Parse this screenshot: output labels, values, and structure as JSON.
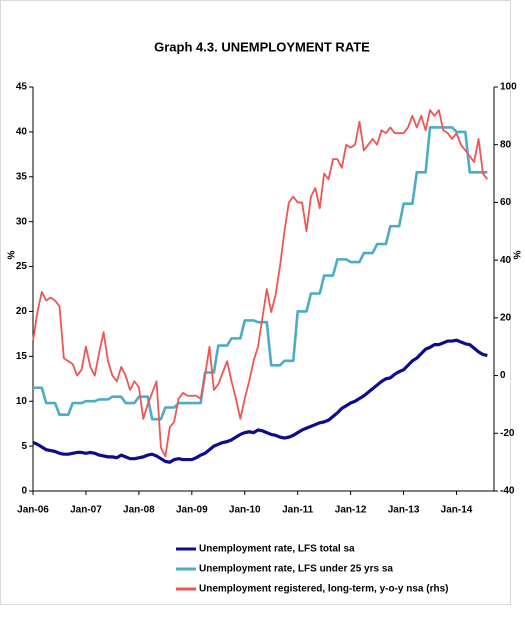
{
  "chart_data": {
    "type": "line",
    "title": "Graph 4.3. UNEMPLOYMENT RATE",
    "ylabel": "%",
    "y2label": "%",
    "categories": [
      "Jan-06",
      null,
      null,
      null,
      null,
      null,
      null,
      null,
      null,
      null,
      null,
      null,
      "Jan-07",
      null,
      null,
      null,
      null,
      null,
      null,
      null,
      null,
      null,
      null,
      null,
      "Jan-08",
      null,
      null,
      null,
      null,
      null,
      null,
      null,
      null,
      null,
      null,
      null,
      "Jan-09",
      null,
      null,
      null,
      null,
      null,
      null,
      null,
      null,
      null,
      null,
      null,
      "Jan-10",
      null,
      null,
      null,
      null,
      null,
      null,
      null,
      null,
      null,
      null,
      null,
      "Jan-11",
      null,
      null,
      null,
      null,
      null,
      null,
      null,
      null,
      null,
      null,
      null,
      "Jan-12",
      null,
      null,
      null,
      null,
      null,
      null,
      null,
      null,
      null,
      null,
      null,
      "Jan-13",
      null,
      null,
      null,
      null,
      null,
      null,
      null,
      null,
      null,
      null,
      null,
      "Jan-14",
      null,
      null,
      null,
      null,
      null,
      null,
      null
    ],
    "ylim": [
      0,
      45
    ],
    "yticks": [
      0,
      5,
      10,
      15,
      20,
      25,
      30,
      35,
      40,
      45
    ],
    "y2lim": [
      -40,
      100
    ],
    "y2ticks": [
      -40,
      -20,
      0,
      20,
      40,
      60,
      80,
      100
    ],
    "series": [
      {
        "name": "Unemployment rate, LFS total sa",
        "color": "#0d0d8c",
        "values": [
          5.4,
          5.2,
          4.9,
          4.6,
          4.5,
          4.4,
          4.2,
          4.1,
          4.1,
          4.2,
          4.3,
          4.3,
          4.2,
          4.3,
          4.2,
          4.0,
          3.9,
          3.8,
          3.8,
          3.7,
          4.0,
          3.8,
          3.6,
          3.6,
          3.7,
          3.8,
          4.0,
          4.1,
          3.9,
          3.6,
          3.3,
          3.2,
          3.5,
          3.6,
          3.5,
          3.5,
          3.5,
          3.7,
          4.0,
          4.2,
          4.6,
          5.0,
          5.2,
          5.4,
          5.5,
          5.7,
          6.0,
          6.3,
          6.5,
          6.6,
          6.5,
          6.8,
          6.7,
          6.5,
          6.3,
          6.2,
          6.0,
          5.9,
          6.0,
          6.2,
          6.5,
          6.8,
          7.0,
          7.2,
          7.4,
          7.6,
          7.7,
          7.9,
          8.3,
          8.7,
          9.2,
          9.5,
          9.8,
          10.0,
          10.3,
          10.6,
          11.0,
          11.4,
          11.8,
          12.2,
          12.5,
          12.6,
          13.0,
          13.3,
          13.5,
          14.0,
          14.5,
          14.8,
          15.3,
          15.8,
          16.0,
          16.3,
          16.3,
          16.5,
          16.7,
          16.7,
          16.8,
          16.6,
          16.4,
          16.3,
          15.9,
          15.5,
          15.2,
          15.1
        ]
      },
      {
        "name": "Unemployment rate, LFS under 25 yrs sa",
        "color": "#4bacc6",
        "values": [
          11.5,
          11.5,
          11.5,
          9.8,
          9.8,
          9.8,
          8.5,
          8.5,
          8.5,
          9.8,
          9.8,
          9.8,
          10.0,
          10.0,
          10.0,
          10.2,
          10.2,
          10.2,
          10.5,
          10.5,
          10.5,
          9.8,
          9.8,
          9.8,
          10.5,
          10.5,
          10.5,
          8.0,
          8.0,
          8.0,
          9.3,
          9.3,
          9.3,
          9.8,
          9.8,
          9.8,
          9.8,
          9.8,
          9.8,
          13.2,
          13.2,
          13.2,
          16.2,
          16.2,
          16.2,
          17.0,
          17.0,
          17.0,
          19.0,
          19.0,
          19.0,
          18.8,
          18.8,
          18.8,
          14.0,
          14.0,
          14.0,
          14.5,
          14.5,
          14.5,
          20.0,
          20.0,
          20.0,
          22.0,
          22.0,
          22.0,
          24.0,
          24.0,
          24.0,
          25.8,
          25.8,
          25.8,
          25.5,
          25.5,
          25.5,
          26.5,
          26.5,
          26.5,
          27.5,
          27.5,
          27.5,
          29.5,
          29.5,
          29.5,
          32.0,
          32.0,
          32.0,
          35.5,
          35.5,
          35.5,
          40.5,
          40.5,
          40.5,
          40.5,
          40.5,
          40.5,
          40.0,
          40.0,
          40.0,
          35.5,
          35.5,
          35.5,
          35.5,
          35.5
        ]
      },
      {
        "name": "Unemployment registered, long-term, y-o-y nsa (rhs)",
        "color": "#f05555",
        "axis": "y2",
        "values": [
          12,
          22,
          29,
          26,
          27,
          26,
          24,
          6,
          5,
          4,
          0,
          2,
          10,
          3,
          0,
          8,
          15,
          5,
          0,
          -2,
          3,
          0,
          -5,
          -2,
          -4,
          -15,
          -10,
          -6,
          -2,
          -25,
          -28,
          -18,
          -16,
          -8,
          -6,
          -7,
          -7,
          -7,
          -8,
          0,
          10,
          -5,
          -3,
          1,
          5,
          -2,
          -8,
          -15,
          -8,
          -2,
          5,
          10,
          20,
          30,
          22,
          28,
          38,
          50,
          60,
          62,
          60,
          60,
          50,
          62,
          65,
          58,
          70,
          68,
          75,
          75,
          72,
          80,
          79,
          80,
          88,
          78,
          80,
          82,
          80,
          85,
          84,
          86,
          84,
          84,
          84,
          86,
          90,
          86,
          90,
          85,
          92,
          90,
          92,
          85,
          84,
          82,
          84,
          80,
          78,
          76,
          74,
          82,
          70,
          68
        ]
      }
    ]
  }
}
